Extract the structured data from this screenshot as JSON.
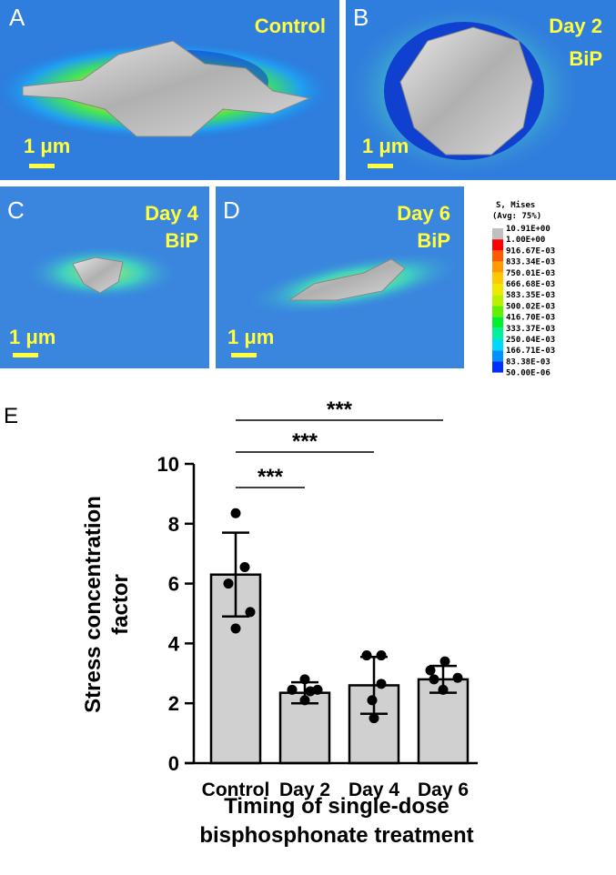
{
  "panels": [
    {
      "letter": "A",
      "title": [
        "Control"
      ],
      "scale": "1 μm"
    },
    {
      "letter": "B",
      "title": [
        "Day 2",
        "BiP"
      ],
      "scale": "1 μm"
    },
    {
      "letter": "C",
      "title": [
        "Day 4",
        "BiP"
      ],
      "scale": "1 μm"
    },
    {
      "letter": "D",
      "title": [
        "Day 6",
        "BiP"
      ],
      "scale": "1 μm"
    }
  ],
  "colorbar": {
    "title": [
      "S, Mises",
      "(Avg: 75%)"
    ],
    "labels": [
      "10.91E+00",
      "1.00E+00",
      "916.67E-03",
      "833.34E-03",
      "750.01E-03",
      "666.68E-03",
      "583.35E-03",
      "500.02E-03",
      "416.70E-03",
      "333.37E-03",
      "250.04E-03",
      "166.71E-03",
      "83.38E-03",
      "50.00E-06"
    ],
    "colors": [
      "#c0c0c0",
      "#ff0000",
      "#ff5a00",
      "#ff9a00",
      "#ffc800",
      "#f0e800",
      "#b8f000",
      "#60f000",
      "#00f030",
      "#00f0a0",
      "#00d8ff",
      "#0090ff",
      "#0030ff"
    ]
  },
  "chart_data": {
    "type": "bar",
    "panel_label": "E",
    "categories": [
      "Control",
      "Day 2",
      "Day 4",
      "Day 6"
    ],
    "values": [
      6.3,
      2.35,
      2.6,
      2.8
    ],
    "errors": [
      1.4,
      0.35,
      0.95,
      0.45
    ],
    "points": [
      [
        8.35,
        6.55,
        6.0,
        5.05,
        4.5
      ],
      [
        2.8,
        2.45,
        2.45,
        2.1,
        2.4
      ],
      [
        3.6,
        3.6,
        2.65,
        2.1,
        1.5
      ],
      [
        3.4,
        3.1,
        2.85,
        2.8,
        2.45
      ]
    ],
    "color": "#d0d0d0",
    "ylim": [
      0,
      10
    ],
    "yticks": [
      0,
      2,
      4,
      6,
      8,
      10
    ],
    "ylabel": [
      "Stress concentration",
      "factor"
    ],
    "xlabel": [
      "Timing of single-dose",
      "bisphosphonate treatment"
    ],
    "significance": [
      "***",
      "***",
      "***"
    ]
  }
}
